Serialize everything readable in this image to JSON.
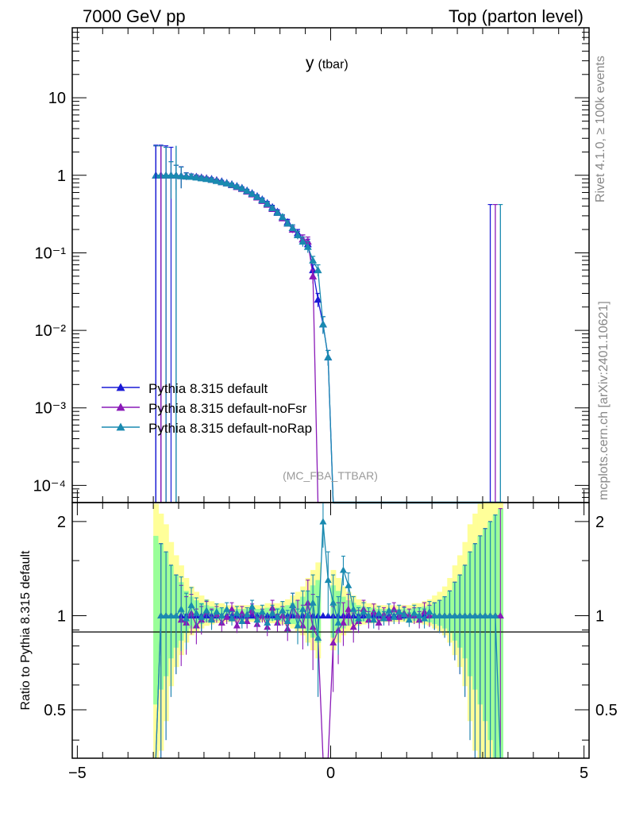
{
  "header": {
    "left": "7000 GeV pp",
    "right": "Top (parton level)"
  },
  "side_labels": {
    "rivet": "Rivet 4.1.0, ≥ 100k events",
    "mcplots": "mcplots.cern.ch [arXiv:2401.10621]"
  },
  "chart_data": [
    {
      "panel": "main",
      "type": "line",
      "title_main": "y",
      "title_sub": "(tbar)",
      "analysis_label": "(MC_FBA_TTBAR)",
      "yscale": "log",
      "xlim": [
        -5.1,
        5.1
      ],
      "ylim": [
        6e-05,
        80
      ],
      "y_ticks": [
        {
          "value": 10,
          "label": "10"
        },
        {
          "value": 1,
          "label": "1"
        },
        {
          "value": 0.1,
          "label": "10⁻¹"
        },
        {
          "value": 0.01,
          "label": "10⁻²"
        },
        {
          "value": 0.001,
          "label": "10⁻³"
        },
        {
          "value": 0.0001,
          "label": "10⁻⁴"
        }
      ],
      "legend_position": "lower-left",
      "legend": [
        "Pythia 8.315 default",
        "Pythia 8.315 default-noFsr",
        "Pythia 8.315 default-noRap"
      ],
      "series": [
        {
          "name": "Pythia 8.315 default",
          "color": "#1a1ad6",
          "x": [
            -3.45,
            -3.35,
            -3.25,
            -3.15,
            -3.05,
            -2.95,
            -2.85,
            -2.75,
            -2.65,
            -2.55,
            -2.45,
            -2.35,
            -2.25,
            -2.15,
            -2.05,
            -1.95,
            -1.85,
            -1.75,
            -1.65,
            -1.55,
            -1.45,
            -1.35,
            -1.25,
            -1.15,
            -1.05,
            -0.95,
            -0.85,
            -0.75,
            -0.65,
            -0.55,
            -0.45,
            -0.35,
            -0.25,
            -0.15,
            -0.05,
            0.05
          ],
          "y": [
            1.0,
            1.0,
            1.0,
            1.0,
            1.0,
            0.99,
            0.98,
            0.97,
            0.96,
            0.94,
            0.92,
            0.9,
            0.87,
            0.84,
            0.8,
            0.77,
            0.73,
            0.69,
            0.64,
            0.59,
            0.54,
            0.49,
            0.44,
            0.39,
            0.34,
            0.29,
            0.25,
            0.21,
            0.18,
            0.15,
            0.13,
            0.06,
            0.025,
            0.012,
            0.0045,
            6e-05
          ],
          "err_up": [
            1.45,
            1.45,
            1.4,
            1.3,
            0.35,
            0.3,
            0.1,
            0.07,
            0.05,
            0.04,
            0.03,
            0.03,
            0.02,
            0.02,
            0.02,
            0.02,
            0.02,
            0.02,
            0.02,
            0.02,
            0.02,
            0.02,
            0.02,
            0.02,
            0.02,
            0.02,
            0.02,
            0.02,
            0.02,
            0.02,
            0.02,
            0.01,
            0.005,
            0.003,
            0.001,
            0.0
          ]
        },
        {
          "name": "Pythia 8.315 default-noFsr",
          "color": "#8a1ab8",
          "x": [
            -3.45,
            -3.35,
            -3.25,
            -3.15,
            -3.05,
            -2.95,
            -2.85,
            -2.75,
            -2.65,
            -2.55,
            -2.45,
            -2.35,
            -2.25,
            -2.15,
            -2.05,
            -1.95,
            -1.85,
            -1.75,
            -1.65,
            -1.55,
            -1.45,
            -1.35,
            -1.25,
            -1.15,
            -1.05,
            -0.95,
            -0.85,
            -0.75,
            -0.65,
            -0.55,
            -0.45,
            -0.35,
            -0.25,
            -0.15
          ],
          "y": [
            1.0,
            1.0,
            1.0,
            1.0,
            1.0,
            0.98,
            0.97,
            0.96,
            0.95,
            0.93,
            0.91,
            0.88,
            0.86,
            0.82,
            0.79,
            0.75,
            0.71,
            0.67,
            0.62,
            0.57,
            0.52,
            0.47,
            0.42,
            0.37,
            0.33,
            0.28,
            0.24,
            0.2,
            0.17,
            0.15,
            0.14,
            0.05,
            6e-05,
            6e-05
          ],
          "err_up": [
            1.4,
            1.4,
            1.3,
            0.5,
            0.35,
            0.3,
            0.1,
            0.07,
            0.05,
            0.04,
            0.03,
            0.03,
            0.02,
            0.02,
            0.02,
            0.02,
            0.02,
            0.02,
            0.02,
            0.02,
            0.02,
            0.02,
            0.02,
            0.02,
            0.02,
            0.02,
            0.02,
            0.02,
            0.02,
            0.02,
            0.02,
            0.01,
            0.0,
            0.0
          ]
        },
        {
          "name": "Pythia 8.315 default-noRap",
          "color": "#1a8ab0",
          "x": [
            -3.45,
            -3.35,
            -3.25,
            -3.15,
            -3.05,
            -2.95,
            -2.85,
            -2.75,
            -2.65,
            -2.55,
            -2.45,
            -2.35,
            -2.25,
            -2.15,
            -2.05,
            -1.95,
            -1.85,
            -1.75,
            -1.65,
            -1.55,
            -1.45,
            -1.35,
            -1.25,
            -1.15,
            -1.05,
            -0.95,
            -0.85,
            -0.75,
            -0.65,
            -0.55,
            -0.45,
            -0.35,
            -0.25,
            -0.15,
            -0.05,
            0.05
          ],
          "y": [
            1.0,
            1.0,
            1.0,
            1.0,
            1.0,
            0.98,
            0.97,
            0.96,
            0.94,
            0.92,
            0.9,
            0.88,
            0.85,
            0.82,
            0.79,
            0.76,
            0.72,
            0.68,
            0.63,
            0.58,
            0.53,
            0.48,
            0.43,
            0.38,
            0.33,
            0.29,
            0.24,
            0.21,
            0.17,
            0.14,
            0.12,
            0.08,
            0.06,
            0.012,
            0.0045,
            6e-05
          ],
          "err_up": [
            1.4,
            1.4,
            1.3,
            0.5,
            0.35,
            0.3,
            0.1,
            0.07,
            0.05,
            0.04,
            0.03,
            0.03,
            0.02,
            0.02,
            0.02,
            0.02,
            0.02,
            0.02,
            0.02,
            0.02,
            0.02,
            0.02,
            0.02,
            0.02,
            0.02,
            0.02,
            0.02,
            0.02,
            0.02,
            0.02,
            0.02,
            0.01,
            0.01,
            0.003,
            0.001,
            0.0
          ]
        }
      ],
      "tail_spikes": [
        {
          "x": 3.15,
          "y_top": 0.42
        },
        {
          "x": 3.25,
          "y_top": 0.42
        },
        {
          "x": 3.35,
          "y_top": 0.42
        }
      ]
    },
    {
      "panel": "ratio",
      "type": "line",
      "ylabel": "Ratio to Pythia 8.315 default",
      "xlim": [
        -5.1,
        5.1
      ],
      "ylim": [
        0.35,
        2.3
      ],
      "x_ticks": [
        {
          "value": -5,
          "label": "−5"
        },
        {
          "value": 0,
          "label": "0"
        },
        {
          "value": 5,
          "label": "5"
        }
      ],
      "y_ticks": [
        {
          "value": 2,
          "label": "2"
        },
        {
          "value": 1,
          "label": "1"
        },
        {
          "value": 0.5,
          "label": "0.5"
        }
      ],
      "band_colors": {
        "outer": "#ffff99",
        "inner": "#99ff99"
      },
      "series": [
        {
          "name": "Pythia 8.315 default-noFsr",
          "color": "#8a1ab8",
          "x": [
            -3.45,
            -3.35,
            -3.25,
            -3.15,
            -3.05,
            -2.95,
            -2.85,
            -2.75,
            -2.65,
            -2.55,
            -2.45,
            -2.35,
            -2.25,
            -2.15,
            -2.05,
            -1.95,
            -1.85,
            -1.75,
            -1.65,
            -1.55,
            -1.45,
            -1.35,
            -1.25,
            -1.15,
            -1.05,
            -0.95,
            -0.85,
            -0.75,
            -0.65,
            -0.55,
            -0.45,
            -0.35,
            -0.25,
            -0.15,
            -0.05,
            0.05,
            0.15,
            0.25,
            0.35,
            0.45,
            0.55,
            0.65,
            0.75,
            0.85,
            0.95,
            1.05,
            1.15,
            1.25,
            1.35,
            1.45,
            1.55,
            1.65,
            1.75,
            1.85,
            1.95,
            2.05,
            2.15,
            2.25,
            2.35,
            2.45,
            2.55,
            2.65,
            2.75,
            2.85,
            2.95,
            3.05,
            3.15,
            3.25,
            3.35
          ],
          "y": [
            0.2,
            1.0,
            1.0,
            1.0,
            1.0,
            0.97,
            0.95,
            1.02,
            0.93,
            0.97,
            1.03,
            0.98,
            1.01,
            0.95,
            0.99,
            1.05,
            0.93,
            1.02,
            0.96,
            1.04,
            0.94,
            1.0,
            0.92,
            1.06,
            0.95,
            1.0,
            0.91,
            1.08,
            1.0,
            0.93,
            1.1,
            0.92,
            0.85,
            0.2,
            0.2,
            0.82,
            0.9,
            0.95,
            1.05,
            0.92,
            0.96,
            1.05,
            0.97,
            1.03,
            0.95,
            1.01,
            0.98,
            1.05,
            0.99,
            1.02,
            1.0,
            1.0,
            0.97,
            1.03,
            1.0,
            1.0,
            1.0,
            1.0,
            1.0,
            1.0,
            1.0,
            1.0,
            1.0,
            1.0,
            1.0,
            1.0,
            1.0,
            1.0,
            1.0
          ],
          "err": [
            0.8,
            0.7,
            0.6,
            0.45,
            0.35,
            0.28,
            0.2,
            0.15,
            0.12,
            0.1,
            0.08,
            0.07,
            0.06,
            0.06,
            0.05,
            0.05,
            0.05,
            0.05,
            0.05,
            0.05,
            0.05,
            0.05,
            0.06,
            0.06,
            0.06,
            0.07,
            0.08,
            0.1,
            0.12,
            0.15,
            0.2,
            0.25,
            0.3,
            0.0,
            0.0,
            0.25,
            0.2,
            0.15,
            0.12,
            0.1,
            0.08,
            0.07,
            0.06,
            0.06,
            0.05,
            0.05,
            0.05,
            0.05,
            0.05,
            0.05,
            0.05,
            0.06,
            0.06,
            0.07,
            0.08,
            0.1,
            0.12,
            0.15,
            0.2,
            0.28,
            0.35,
            0.45,
            0.6,
            0.7,
            0.8,
            0.9,
            1.0,
            1.1,
            1.2
          ]
        },
        {
          "name": "Pythia 8.315 default-noRap",
          "color": "#1a8ab0",
          "x": [
            -3.45,
            -3.35,
            -3.25,
            -3.15,
            -3.05,
            -2.95,
            -2.85,
            -2.75,
            -2.65,
            -2.55,
            -2.45,
            -2.35,
            -2.25,
            -2.15,
            -2.05,
            -1.95,
            -1.85,
            -1.75,
            -1.65,
            -1.55,
            -1.45,
            -1.35,
            -1.25,
            -1.15,
            -1.05,
            -0.95,
            -0.85,
            -0.75,
            -0.65,
            -0.55,
            -0.45,
            -0.35,
            -0.25,
            -0.15,
            -0.05,
            0.05,
            0.15,
            0.25,
            0.35,
            0.45,
            0.55,
            0.65,
            0.75,
            0.85,
            0.95,
            1.05,
            1.15,
            1.25,
            1.35,
            1.45,
            1.55,
            1.65,
            1.75,
            1.85,
            1.95,
            2.05,
            2.15,
            2.25,
            2.35,
            2.45,
            2.55,
            2.65,
            2.75,
            2.85,
            2.95,
            3.05,
            3.15,
            3.25,
            3.35
          ],
          "y": [
            0.2,
            1.0,
            1.0,
            1.0,
            1.0,
            1.05,
            0.98,
            1.08,
            1.02,
            0.99,
            1.04,
            0.97,
            1.03,
            1.0,
            1.05,
            0.98,
            1.02,
            0.96,
            1.01,
            1.07,
            0.97,
            1.03,
            0.95,
            1.02,
            0.99,
            1.04,
            0.96,
            1.08,
            0.93,
            1.05,
            1.0,
            1.1,
            0.85,
            2.0,
            1.3,
            1.1,
            0.95,
            1.4,
            1.25,
            1.05,
            0.98,
            1.03,
            1.0,
            0.97,
            1.02,
            0.98,
            1.04,
            0.99,
            1.03,
            1.01,
            0.97,
            1.02,
            1.0,
            0.98,
            1.03,
            1.0,
            1.0,
            1.0,
            1.0,
            1.0,
            1.0,
            1.0,
            1.0,
            1.0,
            1.0,
            1.0,
            1.0,
            1.0,
            0.2
          ],
          "err": [
            0.8,
            0.7,
            0.6,
            0.45,
            0.35,
            0.28,
            0.2,
            0.15,
            0.12,
            0.1,
            0.08,
            0.07,
            0.06,
            0.06,
            0.05,
            0.05,
            0.05,
            0.05,
            0.05,
            0.05,
            0.05,
            0.05,
            0.06,
            0.06,
            0.06,
            0.07,
            0.08,
            0.1,
            0.12,
            0.15,
            0.2,
            0.25,
            0.3,
            0.35,
            0.3,
            0.25,
            0.2,
            0.15,
            0.12,
            0.1,
            0.08,
            0.07,
            0.06,
            0.06,
            0.05,
            0.05,
            0.05,
            0.05,
            0.05,
            0.05,
            0.05,
            0.06,
            0.06,
            0.07,
            0.08,
            0.1,
            0.12,
            0.15,
            0.2,
            0.28,
            0.35,
            0.45,
            0.6,
            0.7,
            0.8,
            0.9,
            1.0,
            1.1,
            1.2
          ]
        }
      ]
    }
  ]
}
